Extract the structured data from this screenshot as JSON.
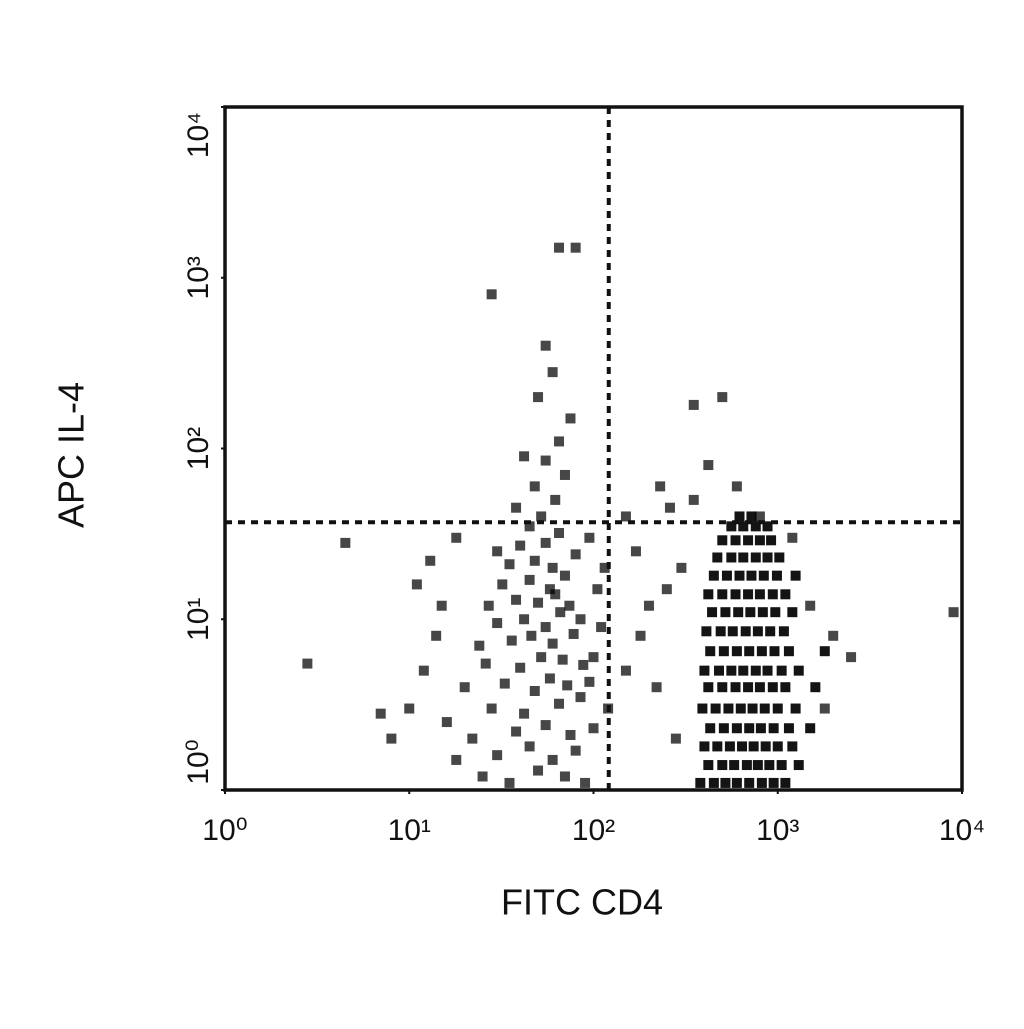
{
  "chart_data": {
    "type": "scatter",
    "x_label": "FITC CD4",
    "y_label": "APC IL-4",
    "xscale": "log",
    "yscale": "log",
    "xlim": [
      1,
      10000
    ],
    "ylim": [
      1,
      10000
    ],
    "xticks": [
      {
        "value": 1,
        "label": "10⁰"
      },
      {
        "value": 10,
        "label": "10¹"
      },
      {
        "value": 100,
        "label": "10²"
      },
      {
        "value": 1000,
        "label": "10³"
      },
      {
        "value": 10000,
        "label": "10⁴"
      }
    ],
    "yticks": [
      {
        "value": 1,
        "label": "10⁰"
      },
      {
        "value": 10,
        "label": "10¹"
      },
      {
        "value": 100,
        "label": "10²"
      },
      {
        "value": 1000,
        "label": "10³"
      },
      {
        "value": 10000,
        "label": "10⁴"
      }
    ],
    "grid": false,
    "color": "#000000",
    "gates": {
      "x": 121,
      "y": 37
    },
    "series": [
      {
        "x": [
          25,
          35,
          50,
          70,
          90,
          30,
          45,
          60,
          80,
          22,
          38,
          55,
          75,
          100,
          28,
          42,
          65,
          85,
          20,
          33,
          48,
          58,
          72,
          95,
          26,
          40,
          52,
          68,
          88,
          24,
          36,
          46,
          60,
          78,
          30,
          42,
          55,
          66,
          85,
          27,
          38,
          50,
          62,
          74,
          32,
          45,
          58,
          70,
          35,
          48,
          60,
          80,
          40,
          55,
          30,
          65,
          45,
          52,
          38,
          62,
          48,
          70,
          55,
          42,
          65,
          75,
          50,
          60,
          28,
          65,
          80,
          55,
          8,
          10,
          12,
          14,
          15,
          11,
          13,
          18,
          4.5,
          2.8,
          7,
          18,
          16,
          100,
          110,
          105,
          115,
          95,
          120,
          150,
          180,
          200,
          250,
          300,
          220,
          280,
          170,
          260,
          350,
          500,
          420,
          600,
          800,
          1200,
          1500,
          2000,
          2500,
          1800,
          9000,
          350,
          230,
          150
        ],
        "y": [
          1.2,
          1.1,
          1.3,
          1.2,
          1.1,
          1.6,
          1.8,
          1.5,
          1.7,
          2,
          2.2,
          2.4,
          2.1,
          2.3,
          3,
          2.8,
          3.2,
          3.5,
          4,
          4.2,
          3.8,
          4.5,
          4.1,
          4.3,
          5.5,
          5.2,
          6,
          5.8,
          5.4,
          7,
          7.5,
          8,
          7.2,
          8.2,
          9.5,
          10,
          9,
          11,
          10,
          12,
          13,
          12.5,
          14,
          12,
          16,
          17,
          15,
          18,
          21,
          22,
          20,
          24,
          27,
          28,
          25,
          32,
          35,
          40,
          45,
          50,
          60,
          70,
          85,
          90,
          110,
          150,
          200,
          280,
          800,
          1500,
          1500,
          400,
          2,
          3,
          5,
          8,
          12,
          16,
          22,
          30,
          28,
          5.5,
          2.8,
          1.5,
          2.5,
          6,
          9,
          15,
          20,
          30,
          3,
          5,
          8,
          12,
          15,
          20,
          4,
          2,
          25,
          45,
          180,
          200,
          80,
          60,
          40,
          30,
          12,
          8,
          6,
          3,
          11,
          50,
          60,
          40
        ]
      },
      {
        "x": [
          380,
          450,
          520,
          600,
          700,
          820,
          950,
          1100,
          420,
          500,
          580,
          680,
          780,
          900,
          1050,
          1300,
          400,
          470,
          550,
          640,
          740,
          860,
          1000,
          1200,
          430,
          510,
          600,
          700,
          810,
          950,
          1150,
          1500,
          390,
          460,
          540,
          630,
          730,
          850,
          1000,
          1250,
          420,
          500,
          590,
          690,
          800,
          940,
          1100,
          1600,
          400,
          480,
          560,
          650,
          760,
          880,
          1050,
          1300,
          430,
          510,
          600,
          700,
          820,
          960,
          1150,
          1800,
          410,
          490,
          570,
          670,
          780,
          910,
          1080,
          440,
          520,
          610,
          710,
          830,
          970,
          1200,
          420,
          500,
          590,
          690,
          800,
          940,
          1100,
          450,
          530,
          620,
          720,
          840,
          990,
          1250,
          470,
          560,
          650,
          760,
          880,
          1020,
          500,
          590,
          690,
          800,
          920,
          560,
          650,
          760,
          880,
          620,
          720
        ],
        "y": [
          1.1,
          1.1,
          1.1,
          1.1,
          1.1,
          1.1,
          1.1,
          1.1,
          1.4,
          1.4,
          1.4,
          1.4,
          1.4,
          1.4,
          1.4,
          1.4,
          1.8,
          1.8,
          1.8,
          1.8,
          1.8,
          1.8,
          1.8,
          1.8,
          2.3,
          2.3,
          2.3,
          2.3,
          2.3,
          2.3,
          2.3,
          2.3,
          3,
          3,
          3,
          3,
          3,
          3,
          3,
          3,
          4,
          4,
          4,
          4,
          4,
          4,
          4,
          4,
          5,
          5,
          5,
          5,
          5,
          5,
          5,
          5,
          6.5,
          6.5,
          6.5,
          6.5,
          6.5,
          6.5,
          6.5,
          6.5,
          8.5,
          8.5,
          8.5,
          8.5,
          8.5,
          8.5,
          8.5,
          11,
          11,
          11,
          11,
          11,
          11,
          11,
          14,
          14,
          14,
          14,
          14,
          14,
          14,
          18,
          18,
          18,
          18,
          18,
          18,
          18,
          23,
          23,
          23,
          23,
          23,
          23,
          29,
          29,
          29,
          29,
          29,
          35,
          35,
          35,
          35,
          40,
          40
        ]
      }
    ]
  }
}
